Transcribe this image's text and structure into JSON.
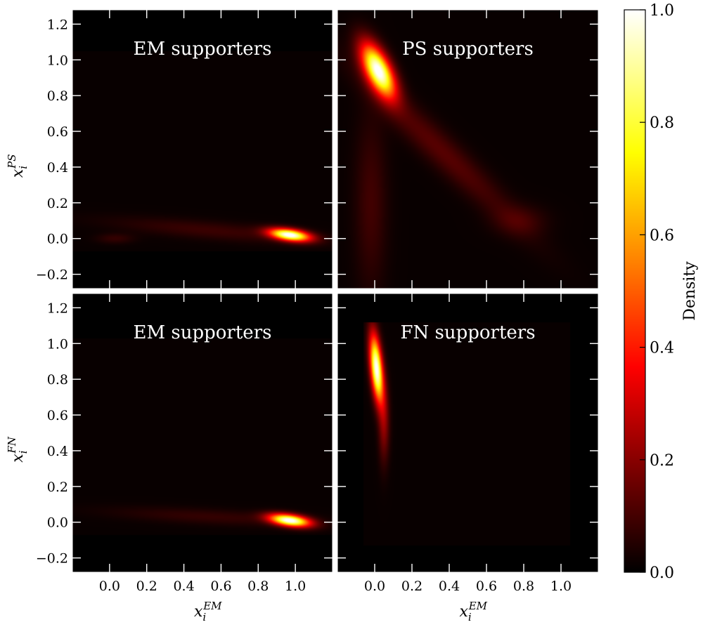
{
  "chart_data": {
    "type": "heatmap",
    "colormap": "hot",
    "colors": {
      "background": "#000000",
      "region": "#170200",
      "text": "#ffffff"
    },
    "colorbar": {
      "label": "Density",
      "range": [
        0.0,
        1.0
      ],
      "ticks": [
        "0.0",
        "0.2",
        "0.4",
        "0.6",
        "0.8",
        "1.0"
      ]
    },
    "panels": [
      {
        "title": "EM supporters",
        "ylabel": {
          "base": "x",
          "sub": "i",
          "sup": "PS"
        },
        "xlabel": null,
        "xlim": [
          -0.2,
          1.2
        ],
        "ylim": [
          -0.28,
          1.28
        ],
        "support": {
          "x": [
            -0.2,
            1.2
          ],
          "y": [
            -0.07,
            1.05
          ]
        },
        "peaks": [
          {
            "x": 0.97,
            "y": 0.02,
            "sx": 0.075,
            "sy": 0.022,
            "angle_deg": -8,
            "amp": 1.0
          },
          {
            "x": 0.55,
            "y": 0.045,
            "sx": 0.38,
            "sy": 0.035,
            "angle_deg": -5,
            "amp": 0.07
          },
          {
            "x": 0.03,
            "y": 0.0,
            "sx": 0.07,
            "sy": 0.02,
            "angle_deg": 0,
            "amp": 0.06
          }
        ]
      },
      {
        "title": "PS supporters",
        "ylabel": null,
        "xlabel": null,
        "xlim": [
          -0.2,
          1.2
        ],
        "ylim": [
          -0.28,
          1.28
        ],
        "support": null,
        "peaks": [
          {
            "x": 0.02,
            "y": 0.94,
            "sx": 0.045,
            "sy": 0.11,
            "angle_deg": 25,
            "amp": 1.0
          },
          {
            "x": 0.35,
            "y": 0.5,
            "sx": 0.42,
            "sy": 0.06,
            "angle_deg": -45,
            "amp": 0.11
          },
          {
            "x": -0.02,
            "y": 0.2,
            "sx": 0.06,
            "sy": 0.35,
            "angle_deg": 0,
            "amp": 0.08
          },
          {
            "x": 0.78,
            "y": 0.1,
            "sx": 0.1,
            "sy": 0.06,
            "angle_deg": 0,
            "amp": 0.07
          }
        ]
      },
      {
        "title": "EM supporters",
        "ylabel": {
          "base": "x",
          "sub": "i",
          "sup": "FN"
        },
        "xlabel": {
          "base": "x",
          "sub": "i",
          "sup": "EM"
        },
        "xlim": [
          -0.2,
          1.2
        ],
        "ylim": [
          -0.28,
          1.28
        ],
        "support": {
          "x": [
            -0.2,
            1.2
          ],
          "y": [
            -0.07,
            1.03
          ]
        },
        "peaks": [
          {
            "x": 0.97,
            "y": 0.01,
            "sx": 0.075,
            "sy": 0.022,
            "angle_deg": -8,
            "amp": 1.0
          },
          {
            "x": 0.55,
            "y": 0.03,
            "sx": 0.38,
            "sy": 0.03,
            "angle_deg": -3,
            "amp": 0.06
          }
        ]
      },
      {
        "title": "FN supporters",
        "ylabel": null,
        "xlabel": {
          "base": "x",
          "sub": "i",
          "sup": "EM"
        },
        "xlim": [
          -0.2,
          1.2
        ],
        "ylim": [
          -0.28,
          1.28
        ],
        "support": {
          "x": [
            -0.06,
            1.05
          ],
          "y": [
            -0.13,
            1.12
          ]
        },
        "peaks": [
          {
            "x": 0.01,
            "y": 0.86,
            "sx": 0.022,
            "sy": 0.13,
            "angle_deg": 5,
            "amp": 1.0
          },
          {
            "x": 0.05,
            "y": 0.55,
            "sx": 0.02,
            "sy": 0.15,
            "angle_deg": 0,
            "amp": 0.18
          }
        ]
      }
    ],
    "xticks": [
      0.0,
      0.2,
      0.4,
      0.6,
      0.8,
      1.0
    ],
    "xtick_labels": [
      "0.0",
      "0.2",
      "0.4",
      "0.6",
      "0.8",
      "1.0"
    ],
    "yticks": [
      -0.2,
      0.0,
      0.2,
      0.4,
      0.6,
      0.8,
      1.0,
      1.2
    ],
    "ytick_labels": [
      "−0.2",
      "0.0",
      "0.2",
      "0.4",
      "0.6",
      "0.8",
      "1.0",
      "1.2"
    ]
  }
}
